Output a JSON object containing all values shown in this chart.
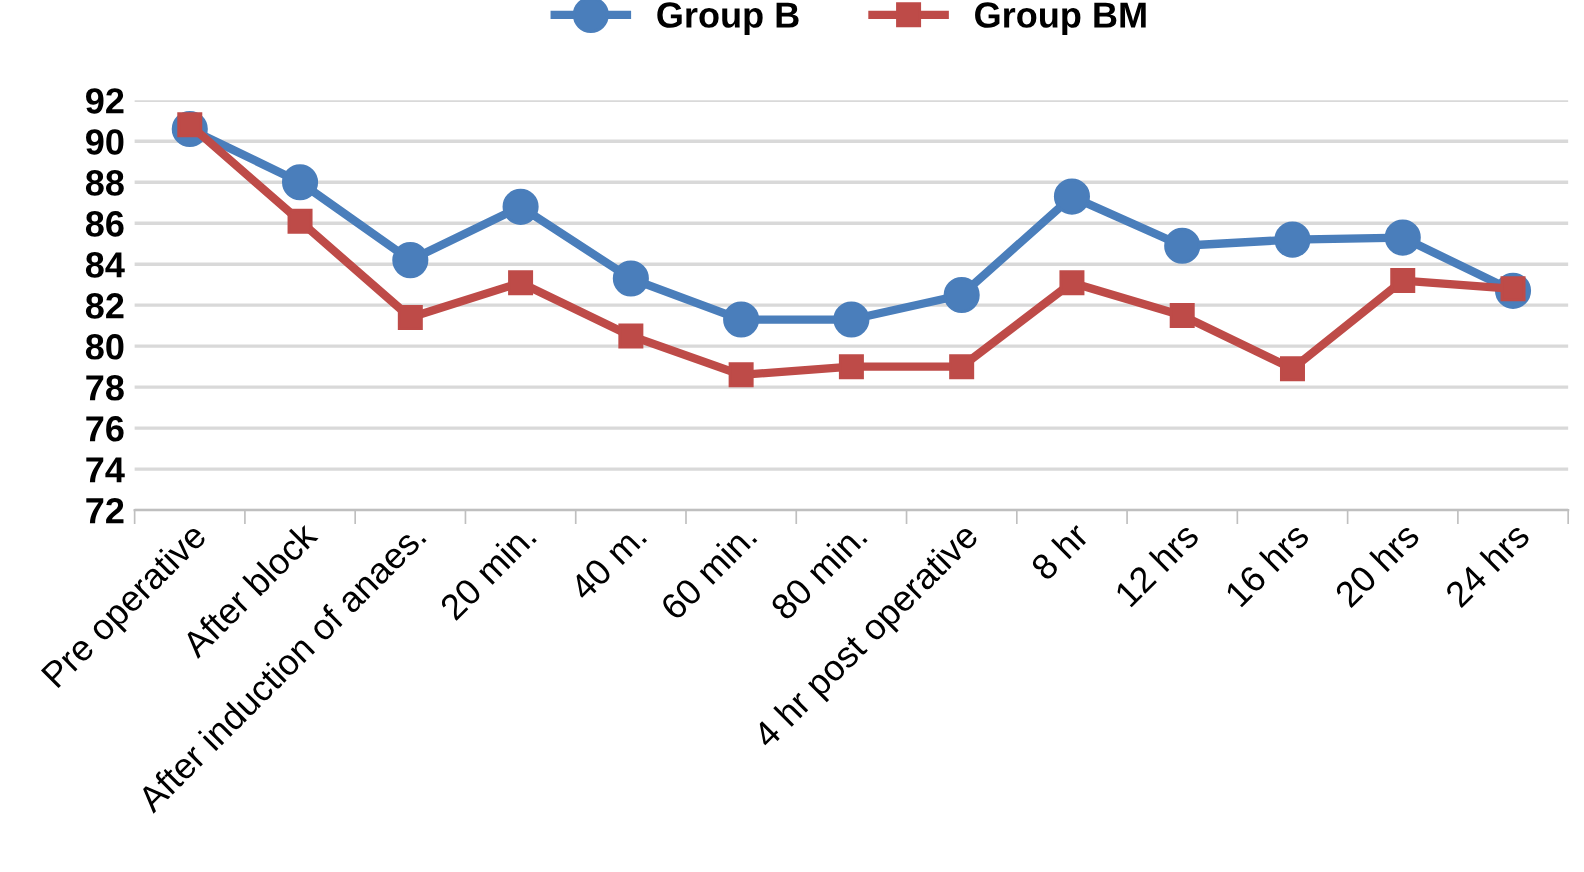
{
  "chart_data": {
    "type": "line",
    "categories": [
      "Pre operative",
      "After block",
      "After induction of anaes.",
      "20 min.",
      "40 m.",
      "60 min.",
      "80 min.",
      "4 hr post operative",
      "8 hr",
      "12 hrs",
      "16 hrs",
      "20 hrs",
      "24 hrs"
    ],
    "series": [
      {
        "name": "Group B",
        "color": "#4a7ebb",
        "marker": "circle",
        "values": [
          90.6,
          88.0,
          84.2,
          86.8,
          83.3,
          81.3,
          81.3,
          82.5,
          87.3,
          84.9,
          85.2,
          85.3,
          82.7
        ]
      },
      {
        "name": "Group BM",
        "color": "#be4b48",
        "marker": "square",
        "values": [
          90.8,
          86.1,
          81.4,
          83.1,
          80.5,
          78.6,
          79.0,
          79.0,
          83.1,
          81.5,
          78.9,
          83.2,
          82.8
        ]
      }
    ],
    "ylim": [
      72,
      92
    ],
    "yticks": [
      72,
      74,
      76,
      78,
      80,
      82,
      84,
      86,
      88,
      90,
      92
    ],
    "grid": "y",
    "legend": "top",
    "line_style": "solid"
  }
}
